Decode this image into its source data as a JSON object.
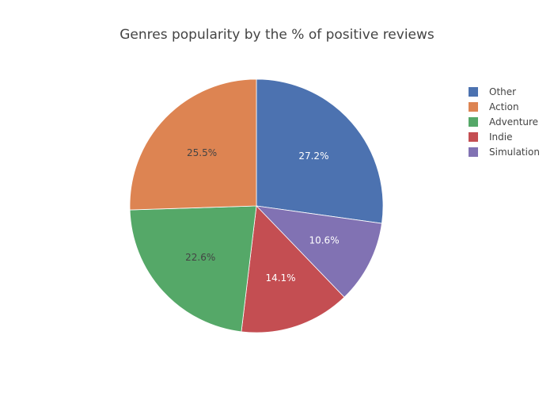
{
  "chart_data": {
    "type": "pie",
    "title": "Genres popularity by the % of positive reviews",
    "categories": [
      "Other",
      "Action",
      "Adventure",
      "Indie",
      "Simulation"
    ],
    "values": [
      27.2,
      25.5,
      22.6,
      14.1,
      10.6
    ],
    "labels": [
      "27.2%",
      "25.5%",
      "22.6%",
      "14.1%",
      "10.6%"
    ],
    "colors": [
      "#4c72b0",
      "#dd8452",
      "#55a868",
      "#c44e52",
      "#8172b3"
    ],
    "label_colors": [
      "#ffffff",
      "#444444",
      "#444444",
      "#ffffff",
      "#ffffff"
    ],
    "legend": {
      "position": "right",
      "items": [
        "Other",
        "Action",
        "Adventure",
        "Indie",
        "Simulation"
      ]
    },
    "slice_order": [
      "Other",
      "Simulation",
      "Indie",
      "Adventure",
      "Action"
    ]
  }
}
